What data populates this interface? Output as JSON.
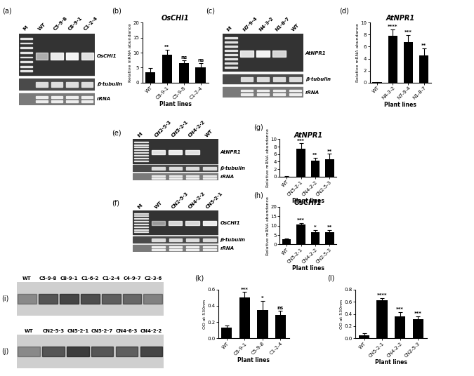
{
  "chart_data": [
    {
      "type": "bar",
      "annotations": [
        "(b)"
      ],
      "title": "OsCHI1",
      "x_label": "Plant lines",
      "y_label": "Relative mRNA abundance",
      "categories": [
        "WT",
        "C8-9-1",
        "C5-9-8",
        "C1-2-4"
      ],
      "values": [
        3.5,
        9.2,
        6.6,
        5.1
      ],
      "errors": [
        1.3,
        1.8,
        0.9,
        1.5
      ],
      "significance": [
        null,
        "**",
        "ns",
        "ns"
      ],
      "color": "#000000",
      "ylim": [
        0,
        20
      ],
      "yticks": [
        0,
        5,
        10,
        15,
        20
      ]
    },
    {
      "type": "bar",
      "annotations": [
        "(d)"
      ],
      "title": "AtNPR1",
      "x_label": "Plant lines",
      "y_label": "Relative mRNA abundance",
      "categories": [
        "WT",
        "N4-3-2",
        "N7-9-4",
        "N1-8-7"
      ],
      "values": [
        0.05,
        7.8,
        6.7,
        4.5
      ],
      "errors": [
        0.05,
        1.1,
        1.2,
        1.2
      ],
      "significance": [
        null,
        "****",
        "***",
        "**"
      ],
      "color": "#000000",
      "ylim": [
        0,
        10
      ],
      "yticks": [
        0,
        2,
        4,
        6,
        8,
        10
      ]
    },
    {
      "type": "bar",
      "annotations": [
        "(g)"
      ],
      "title": "AtNPR1",
      "x_label": "Plant lines",
      "y_label": "Relative mRNA abundance",
      "categories": [
        "WT",
        "CN5-2-1",
        "CN4-2-2",
        "CN2-5-3"
      ],
      "values": [
        0.05,
        7.5,
        4.2,
        4.7
      ],
      "errors": [
        0.05,
        1.4,
        0.9,
        1.4
      ],
      "significance": [
        null,
        "***",
        "**",
        "**"
      ],
      "color": "#000000",
      "ylim": [
        0,
        10
      ],
      "yticks": [
        0,
        2,
        4,
        6,
        8,
        10
      ]
    },
    {
      "type": "bar",
      "annotations": [
        "(h)"
      ],
      "title": "OsCHI1",
      "x_label": "Plant lines",
      "y_label": "Relative mRNA abundance",
      "categories": [
        "WT",
        "CN5-2-1",
        "CN4-2-2",
        "CN2-5-3"
      ],
      "values": [
        2.8,
        10.5,
        6.5,
        6.5
      ],
      "errors": [
        0.5,
        1.0,
        1.2,
        1.2
      ],
      "significance": [
        null,
        "***",
        "*",
        "**"
      ],
      "color": "#000000",
      "ylim": [
        0,
        20
      ],
      "yticks": [
        0,
        5,
        10,
        15,
        20
      ]
    },
    {
      "type": "bar",
      "annotations": [
        "(k)"
      ],
      "x_label": "Plant lines",
      "y_label": "OD at 530nm",
      "categories": [
        "WT",
        "C8-9-1",
        "C5-9-8",
        "C1-2-4"
      ],
      "values": [
        0.13,
        0.5,
        0.35,
        0.29
      ],
      "errors": [
        0.03,
        0.07,
        0.11,
        0.05
      ],
      "significance": [
        null,
        "***",
        "*",
        "ns"
      ],
      "color": "#000000",
      "ylim": [
        0.0,
        0.6
      ],
      "yticks": [
        0.0,
        0.2,
        0.4,
        0.6
      ]
    },
    {
      "type": "bar",
      "annotations": [
        "(l)"
      ],
      "x_label": "Plant lines",
      "y_label": "OD at 530nm",
      "categories": [
        "WT",
        "CN5-2-1",
        "CN4-2-2",
        "CN2-5-3"
      ],
      "values": [
        0.05,
        0.62,
        0.36,
        0.31
      ],
      "errors": [
        0.04,
        0.04,
        0.07,
        0.05
      ],
      "significance": [
        null,
        "****",
        "***",
        "***"
      ],
      "color": "#000000",
      "ylim": [
        0.0,
        0.8
      ],
      "yticks": [
        0.0,
        0.2,
        0.4,
        0.6,
        0.8
      ]
    }
  ],
  "gels": [
    {
      "panel": "(a)",
      "kind": "dna",
      "lanes": [
        "M",
        "WT",
        "C5-9-8",
        "C8-9-1",
        "C1-2-4"
      ],
      "band": [
        null,
        0.6,
        0.9,
        0.95,
        0.85
      ],
      "rows": [
        "OsCHI1",
        "β-tubulin",
        "rRNA"
      ]
    },
    {
      "panel": "(c)",
      "kind": "dna",
      "lanes": [
        "M",
        "N7-9-4",
        "N4-3-2",
        "N1-8-7",
        "WT"
      ],
      "band": [
        null,
        0.85,
        0.95,
        0.8,
        0
      ],
      "rows": [
        "AtNPR1",
        "β-tubulin",
        "rRNA"
      ]
    },
    {
      "panel": "(e)",
      "kind": "dna",
      "lanes": [
        "M",
        "CN2-5-3",
        "CN5-2-1",
        "CN4-2-2",
        "WT"
      ],
      "band": [
        null,
        0.85,
        0.9,
        0.85,
        0
      ],
      "rows": [
        "AtNPR1",
        "β-tubulin",
        "rRNA"
      ]
    },
    {
      "panel": "(f)",
      "kind": "dna",
      "lanes": [
        "M",
        "WT",
        "CN2-5-3",
        "CN4-2-2",
        "CN5-2-1"
      ],
      "band": [
        null,
        0.5,
        0.8,
        0.8,
        0.9
      ],
      "rows": [
        "OsCHI1",
        "β-tubulin",
        "rRNA"
      ]
    },
    {
      "panel": "(i)",
      "kind": "protein",
      "lanes": [
        "WT",
        "C5-9-8",
        "C8-9-1",
        "C1-6-2",
        "C1-2-4",
        "C4-9-7",
        "C2-3-6"
      ],
      "band": [
        0.4,
        0.7,
        0.8,
        0.75,
        0.65,
        0.6,
        0.45
      ]
    },
    {
      "panel": "(j)",
      "kind": "protein",
      "lanes": [
        "WT",
        "CN2-5-3",
        "CN5-2-1",
        "CN5-2-7",
        "CN4-6-3",
        "CN4-2-2"
      ],
      "band": [
        0.4,
        0.7,
        0.85,
        0.7,
        0.65,
        0.8
      ]
    }
  ]
}
